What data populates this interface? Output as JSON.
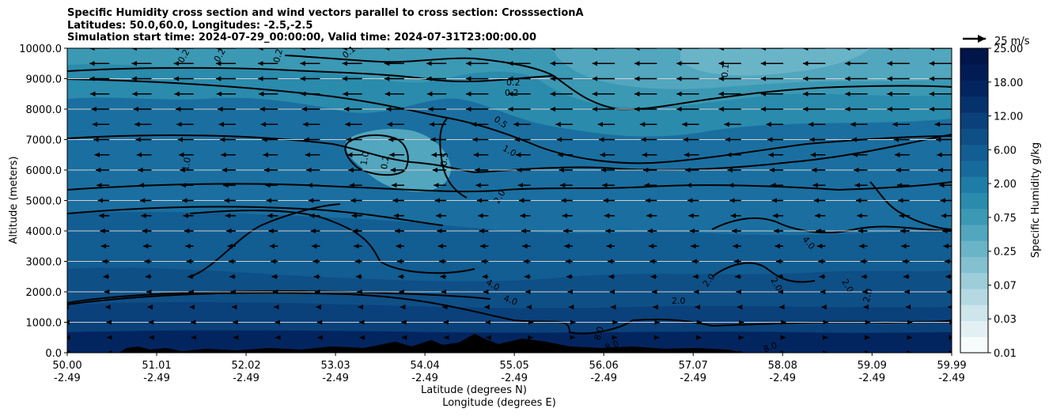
{
  "chart_data": {
    "type": "contour",
    "title_lines": [
      "Specific Humidity cross section and wind vectors parallel to cross section: CrosssectionA",
      "Latitudes: 50.0,60.0, Longitudes: -2.5,-2.5",
      "Simulation start time: 2024-07-29_00:00:00, Valid time: 2024-07-31T23:00:00.00"
    ],
    "ylabel": "Altitude (meters)",
    "xlabel_lines": [
      "Latitude (degrees N)",
      "Longitude (degrees E)"
    ],
    "ylim": [
      0,
      10000
    ],
    "yticks": [
      "0.0",
      "1000.0",
      "2000.0",
      "3000.0",
      "4000.0",
      "5000.0",
      "6000.0",
      "7000.0",
      "8000.0",
      "9000.0",
      "10000.0"
    ],
    "xlim": [
      50.0,
      59.99
    ],
    "xticks": [
      {
        "lat": "50.00",
        "lon": "-2.49"
      },
      {
        "lat": "51.01",
        "lon": "-2.49"
      },
      {
        "lat": "52.02",
        "lon": "-2.49"
      },
      {
        "lat": "53.03",
        "lon": "-2.49"
      },
      {
        "lat": "54.04",
        "lon": "-2.49"
      },
      {
        "lat": "55.05",
        "lon": "-2.49"
      },
      {
        "lat": "56.06",
        "lon": "-2.49"
      },
      {
        "lat": "57.07",
        "lon": "-2.49"
      },
      {
        "lat": "58.08",
        "lon": "-2.49"
      },
      {
        "lat": "59.09",
        "lon": "-2.49"
      },
      {
        "lat": "59.99",
        "lon": "-2.49"
      }
    ],
    "colorbar": {
      "label": "Specific Humidity g/kg",
      "ticks": [
        "0.01",
        "0.03",
        "0.07",
        "0.25",
        "0.75",
        "2.00",
        "6.00",
        "12.00",
        "18.00",
        "25.00"
      ],
      "colors": [
        "#f7fbfc",
        "#e3f0f3",
        "#cde5eb",
        "#b5d9e3",
        "#9ccdd9",
        "#83c0d0",
        "#6ab4c8",
        "#52a6be",
        "#3b99b4",
        "#2a8bac",
        "#1e7ca6",
        "#176b9c",
        "#125d92",
        "#0e4f86",
        "#0a417a",
        "#06326c",
        "#03255f",
        "#011c55",
        "#001548"
      ]
    },
    "contour_labels": [
      "0.1",
      "0.2",
      "0.5",
      "1.0",
      "2.0",
      "4.0",
      "8.0"
    ],
    "quiver_key": {
      "value": 25,
      "label": "25 m/s"
    },
    "wind_field": "predominantly parallel flow toward lower latitudes aloft, weak near surface",
    "grid": true
  }
}
